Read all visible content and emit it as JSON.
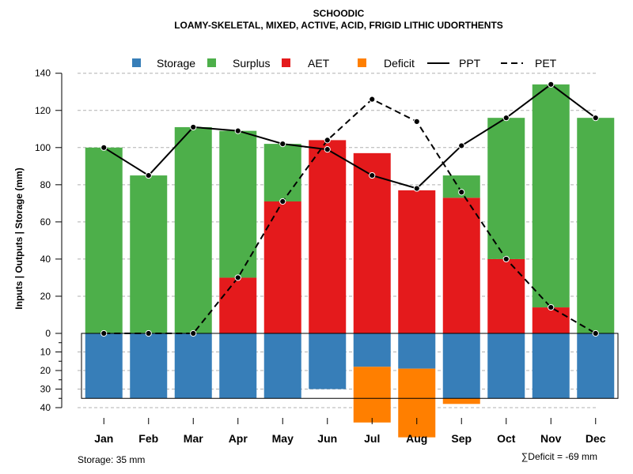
{
  "chart_data": {
    "type": "bar",
    "title": "SCHOODIC",
    "subtitle": "LOAMY-SKELETAL, MIXED, ACTIVE, ACID, FRIGID LITHIC UDORTHENTS",
    "ylabel": "Inputs | Outputs | Storage    (mm)",
    "ylim": [
      -40,
      140
    ],
    "yticks_top": [
      "0",
      "20",
      "40",
      "60",
      "80",
      "100",
      "120",
      "140"
    ],
    "yticks_bottom": [
      "10",
      "20",
      "30",
      "40"
    ],
    "categories": [
      "Jan",
      "Feb",
      "Mar",
      "Apr",
      "May",
      "Jun",
      "Jul",
      "Aug",
      "Sep",
      "Oct",
      "Nov",
      "Dec"
    ],
    "series": [
      {
        "name": "AET",
        "color": "#E41A1C",
        "values": [
          0,
          0,
          0,
          30,
          71,
          104,
          97,
          77,
          73,
          40,
          14,
          0
        ]
      },
      {
        "name": "Surplus",
        "color": "#4DAF4A",
        "values": [
          100,
          85,
          111,
          79,
          31,
          0,
          0,
          0,
          12,
          76,
          120,
          116
        ]
      },
      {
        "name": "Storage",
        "color": "#377EB8",
        "values": [
          35,
          35,
          35,
          35,
          35,
          30,
          18,
          19,
          35,
          35,
          35,
          35
        ]
      },
      {
        "name": "Deficit",
        "color": "#FF7F00",
        "values": [
          0,
          0,
          0,
          0,
          0,
          0,
          30,
          37,
          3,
          0,
          0,
          0
        ]
      },
      {
        "name": "PPT",
        "style": "solid",
        "values": [
          100,
          85,
          111,
          109,
          102,
          99,
          85,
          78,
          101,
          116,
          134,
          116
        ]
      },
      {
        "name": "PET",
        "style": "dashed",
        "values": [
          0,
          0,
          0,
          30,
          71,
          104,
          126,
          114,
          76,
          40,
          14,
          0
        ]
      }
    ],
    "legend": [
      "Storage",
      "Surplus",
      "AET",
      "Deficit",
      "PPT",
      "PET"
    ],
    "legend_position": "top",
    "storage_capacity": 35,
    "storage_note": "Storage: 35 mm",
    "deficit_note": "∑Deficit = -69 mm"
  }
}
